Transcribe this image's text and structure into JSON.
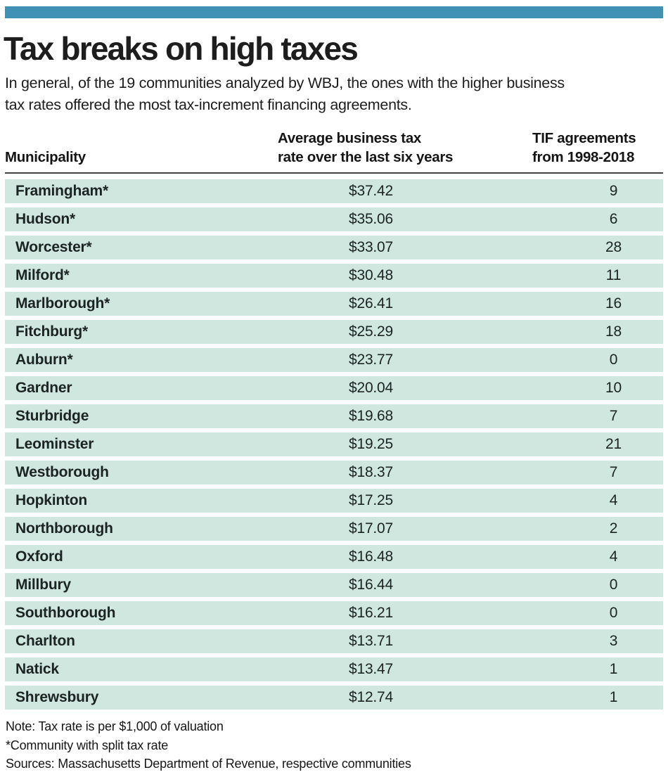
{
  "colors": {
    "accent_bar": "#4191b4",
    "row_background": "#cfe7df",
    "header_rule": "#424242",
    "text": "#1c1c1c"
  },
  "header": {
    "title": "Tax breaks on high taxes",
    "subtitle_lines": [
      "In general, of the 19 communities analyzed by WBJ, the ones with the higher business",
      "tax rates offered the most tax-increment financing agreements."
    ]
  },
  "chart_data": {
    "type": "table",
    "title": "Tax breaks on high taxes",
    "subtitle": "In general, of the 19 communities analyzed by WBJ, the ones with the higher business tax rates offered the most tax-increment financing agreements.",
    "column_headers": [
      {
        "lines": [
          "Municipality"
        ]
      },
      {
        "lines": [
          "Average business tax",
          "rate over the last six years"
        ]
      },
      {
        "lines": [
          "TIF agreements",
          "from 1998-2018"
        ]
      }
    ],
    "rows": [
      {
        "municipality": "Framingham*",
        "rate_display": "$37.42",
        "rate": 37.42,
        "tif": 9
      },
      {
        "municipality": "Hudson*",
        "rate_display": "$35.06",
        "rate": 35.06,
        "tif": 6
      },
      {
        "municipality": "Worcester*",
        "rate_display": "$33.07",
        "rate": 33.07,
        "tif": 28
      },
      {
        "municipality": "Milford*",
        "rate_display": "$30.48",
        "rate": 30.48,
        "tif": 11
      },
      {
        "municipality": "Marlborough*",
        "rate_display": "$26.41",
        "rate": 26.41,
        "tif": 16
      },
      {
        "municipality": "Fitchburg*",
        "rate_display": "$25.29",
        "rate": 25.29,
        "tif": 18
      },
      {
        "municipality": "Auburn*",
        "rate_display": "$23.77",
        "rate": 23.77,
        "tif": 0
      },
      {
        "municipality": "Gardner",
        "rate_display": "$20.04",
        "rate": 20.04,
        "tif": 10
      },
      {
        "municipality": "Sturbridge",
        "rate_display": "$19.68",
        "rate": 19.68,
        "tif": 7
      },
      {
        "municipality": "Leominster",
        "rate_display": "$19.25",
        "rate": 19.25,
        "tif": 21
      },
      {
        "municipality": "Westborough",
        "rate_display": "$18.37",
        "rate": 18.37,
        "tif": 7
      },
      {
        "municipality": "Hopkinton",
        "rate_display": "$17.25",
        "rate": 17.25,
        "tif": 4
      },
      {
        "municipality": "Northborough",
        "rate_display": "$17.07",
        "rate": 17.07,
        "tif": 2
      },
      {
        "municipality": "Oxford",
        "rate_display": "$16.48",
        "rate": 16.48,
        "tif": 4
      },
      {
        "municipality": "Millbury",
        "rate_display": "$16.44",
        "rate": 16.44,
        "tif": 0
      },
      {
        "municipality": "Southborough",
        "rate_display": "$16.21",
        "rate": 16.21,
        "tif": 0
      },
      {
        "municipality": "Charlton",
        "rate_display": "$13.71",
        "rate": 13.71,
        "tif": 3
      },
      {
        "municipality": "Natick",
        "rate_display": "$13.47",
        "rate": 13.47,
        "tif": 1
      },
      {
        "municipality": "Shrewsbury",
        "rate_display": "$12.74",
        "rate": 12.74,
        "tif": 1
      }
    ],
    "notes": [
      "Note: Tax rate is per $1,000 of valuation",
      "*Community with split tax rate",
      "Sources: Massachusetts Department of Revenue, respective communities"
    ]
  }
}
